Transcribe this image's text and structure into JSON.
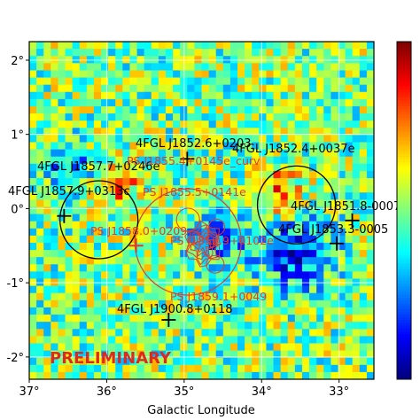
{
  "chart_data": {
    "type": "heatmap",
    "xlabel": "Galactic Longitude",
    "ylabel": "",
    "xlim": [
      37.0,
      32.55
    ],
    "ylim": [
      -2.3,
      2.25
    ],
    "xticks": [
      {
        "value": 37.0,
        "label": "37°"
      },
      {
        "value": 36.0,
        "label": "36°"
      },
      {
        "value": 35.0,
        "label": "35°"
      },
      {
        "value": 34.0,
        "label": "34°"
      },
      {
        "value": 33.0,
        "label": "33°"
      }
    ],
    "yticks": [
      {
        "value": 2.0,
        "label": "2°"
      },
      {
        "value": 1.0,
        "label": "1°"
      },
      {
        "value": 0.0,
        "label": "0°"
      },
      {
        "value": -1.0,
        "label": "-1°"
      },
      {
        "value": -2.0,
        "label": "-2°"
      }
    ],
    "grid": true,
    "colormap": "jet",
    "colorbar": "right",
    "watermark": "PRELIMINARY",
    "catalog_sources": [
      {
        "name": "4FGL J1852.6+0203",
        "l": 34.96,
        "b": 0.67
      },
      {
        "name": "4FGL J1852.4+0037e",
        "l": 33.6,
        "b": 0.05
      },
      {
        "name": "4FGL J1857.7+0246e",
        "l": 36.32,
        "b": -0.12
      },
      {
        "name": "4FGL J1857.9+0313c",
        "l": 36.45,
        "b": -0.05
      },
      {
        "name": "4FGL J1851.8-0007",
        "l": 32.83,
        "b": -0.16
      },
      {
        "name": "4FGL J1853.3-0005",
        "l": 33.03,
        "b": -0.47
      },
      {
        "name": "4FGL J1900.8+0118",
        "l": 35.2,
        "b": -1.5
      }
    ],
    "new_sources": [
      {
        "name": "PS J1855.4+0145e_curv",
        "l": 34.85,
        "b": -0.2
      },
      {
        "name": "PS J1855.5+0141e",
        "l": 34.7,
        "b": -0.35
      },
      {
        "name": "PS J1858.0+0209",
        "l": 35.62,
        "b": -0.5
      },
      {
        "name": "PS J1856.9+0102e",
        "l": 34.75,
        "b": -0.45
      },
      {
        "name": "PS J1859.1+0049",
        "l": 35.0,
        "b": -1.2
      }
    ]
  },
  "colors": {
    "catalog_marker": "#000000",
    "new_source": "#e03c28",
    "watermark": "#e0281e"
  }
}
